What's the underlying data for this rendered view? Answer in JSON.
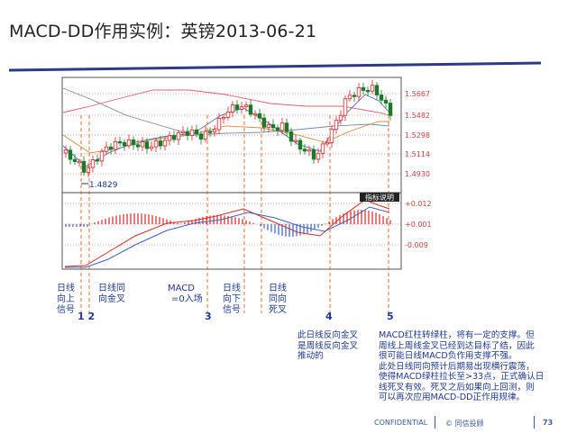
{
  "slide": {
    "title": "MACD-DD作用实例：英镑2013-06-21",
    "footer_confidential": "CONFIDENTIAL",
    "footer_copyright": "© 同信投顾",
    "page_number": "73"
  },
  "chart_data": {
    "type": "candlestick",
    "instrument": "英镑",
    "price_ticks": [
      "1.5667",
      "1.5482",
      "1.5298",
      "1.5114",
      "1.4930"
    ],
    "low_label": "1.4829",
    "indicator_badge": "指标说明",
    "macd_ticks": [
      "0.012",
      "0.001",
      "-0.009"
    ],
    "colors": {
      "up": "#d8242a",
      "down": "#1a7a2a",
      "grid": "#d04040",
      "marker": "#e06020"
    }
  },
  "annotations": {
    "a1": {
      "lines": [
        "日线",
        "向上",
        "信号"
      ]
    },
    "a2": {
      "lines": [
        "日线同",
        "向金叉"
      ]
    },
    "a3": {
      "lines": [
        "MACD",
        "=0入场"
      ]
    },
    "a4": {
      "lines": [
        "日线",
        "向下",
        "信号"
      ]
    },
    "a5": {
      "lines": [
        "日线",
        "同向",
        "死叉"
      ]
    },
    "num12": "1 2",
    "num3": "3",
    "num4": "4",
    "num5": "5",
    "note4": [
      "此日线反向金叉",
      "是周线反向金叉",
      "推动的"
    ],
    "note5": [
      "MACD红柱转绿柱，将有一定的支撑。但",
      "周线上周线金叉已经到达目标了结，因此",
      "很可能日线MACD负作用支撑不强。",
      "此处日线同向预计后期易出现横行震荡，",
      "使得MACD绿柱拉长至>33点，正式确认日",
      "线死叉有效。死叉之后如果向上回测，则",
      "可以再次应用MACD-DD正作用规律。"
    ]
  }
}
